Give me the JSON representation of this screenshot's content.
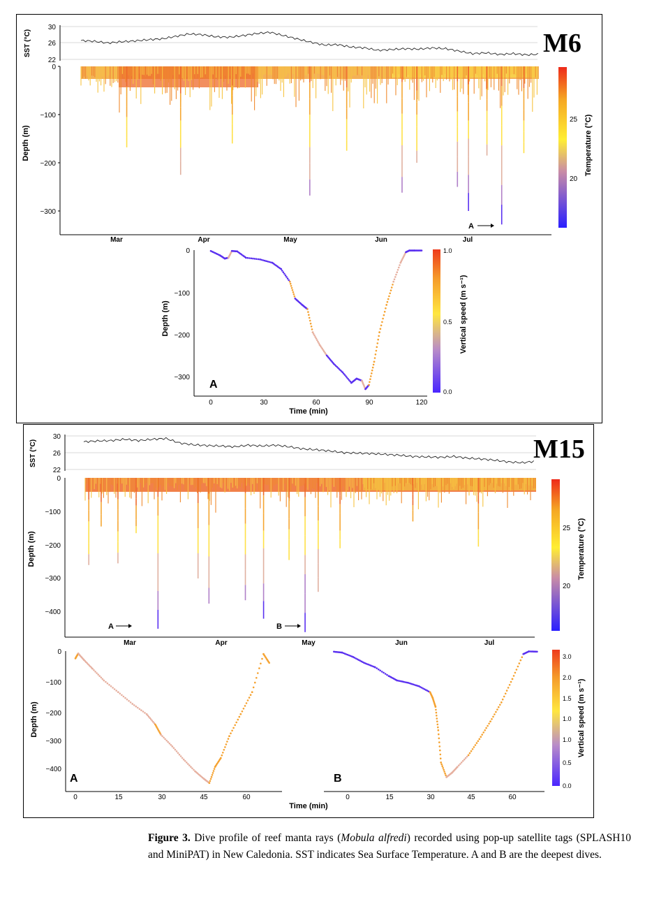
{
  "m6": {
    "tag": "M6",
    "sst": {
      "axis_label": "SST (°C)",
      "ticks": [
        "30",
        "26",
        "22"
      ]
    },
    "depth_panel": {
      "ylabel": "Depth (m)",
      "yticks": [
        "0",
        "−100",
        "−200",
        "−300"
      ],
      "months": [
        "Mar",
        "Apr",
        "May",
        "Jun",
        "Jul"
      ],
      "colorbar_label": "Temperature (°C)",
      "colorbar_ticks": [
        "25",
        "20"
      ],
      "marker": "A"
    },
    "dive_A": {
      "panel_letter": "A",
      "ylabel": "Depth (m)",
      "xlabel": "Time (min)",
      "yticks": [
        "0",
        "−100",
        "−200",
        "−300"
      ],
      "xticks": [
        "0",
        "30",
        "60",
        "90",
        "120"
      ],
      "colorbar_label": "Vertical speed (m s⁻¹)",
      "colorbar_ticks": [
        "1.0",
        "0.5",
        "0.0"
      ]
    }
  },
  "m15": {
    "tag": "M15",
    "sst": {
      "axis_label": "SST (°C)",
      "ticks": [
        "30",
        "26",
        "22"
      ]
    },
    "depth_panel": {
      "ylabel": "Depth (m)",
      "yticks": [
        "0",
        "−100",
        "−200",
        "−300",
        "−400"
      ],
      "months": [
        "Mar",
        "Apr",
        "May",
        "Jun",
        "Jul"
      ],
      "colorbar_label": "Temperature (°C)",
      "colorbar_ticks": [
        "25",
        "20"
      ],
      "marker_a": "A",
      "marker_b": "B"
    },
    "dive_A": {
      "panel_letter": "A",
      "ylabel": "Depth (m)",
      "yticks": [
        "0",
        "−100",
        "−200",
        "−300",
        "−400"
      ],
      "xticks": [
        "0",
        "15",
        "30",
        "45",
        "60"
      ]
    },
    "dive_B": {
      "panel_letter": "B",
      "xticks": [
        "0",
        "15",
        "30",
        "45",
        "60"
      ],
      "colorbar_label": "Vertical speed (m s⁻¹)",
      "colorbar_ticks": [
        "3.0",
        "2.0",
        "1.5",
        "1.0",
        "1.0",
        "0.5",
        "0.0"
      ]
    },
    "xlabel": "Time (min)"
  },
  "caption": {
    "label": "Figure 3.",
    "text_1": " Dive profile of reef manta rays (",
    "species": "Mobula alfredi",
    "text_2": ") recorded using pop-up satellite tags (SPLASH10 and MiniPAT) in New Caledonia. SST indicates Sea Surface Temperature. A and B are the deepest dives."
  },
  "chart_data": [
    {
      "type": "line",
      "title": "",
      "ylabel": "SST (°C)",
      "ylim": [
        22,
        30
      ],
      "x_axis": "Mar–Jul (M6)",
      "series": [
        {
          "values": [
            26.6,
            26.4,
            26.0,
            26.3,
            26.5,
            26.8,
            27.0,
            27.6,
            28.2,
            28.0,
            27.5,
            27.4,
            27.8,
            28.3,
            28.6,
            27.8,
            27.0,
            26.2,
            25.5,
            25.6,
            25.0,
            24.8,
            24.2,
            24.4,
            24.6,
            24.5,
            24.8,
            24.6,
            24.0,
            23.4,
            23.6,
            23.2,
            23.4,
            23.1,
            23.3
          ]
        }
      ]
    },
    {
      "type": "scatter",
      "title": "",
      "ylabel": "Depth (m)",
      "ylim": [
        -330,
        0
      ],
      "x_axis": "Mar–Jul (M6)",
      "color_scale": {
        "label": "Temperature (°C)",
        "range": [
          17,
          29
        ],
        "colors": [
          "#2a1fff",
          "#ffe640",
          "#ef3b1c"
        ]
      },
      "deep_dives": [
        {
          "month_pos": 0.62,
          "depth": -168
        },
        {
          "month_pos": 1.35,
          "depth": -225
        },
        {
          "month_pos": 2.05,
          "depth": -160
        },
        {
          "month_pos": 3.1,
          "depth": -268
        },
        {
          "month_pos": 3.6,
          "depth": -175
        },
        {
          "month_pos": 4.35,
          "depth": -262
        },
        {
          "month_pos": 4.55,
          "depth": -200
        },
        {
          "month_pos": 5.1,
          "depth": -250
        },
        {
          "month_pos": 5.25,
          "depth": -300
        },
        {
          "month_pos": 5.5,
          "depth": -185
        },
        {
          "month_pos": 5.7,
          "depth": -328
        },
        {
          "month_pos": 6.0,
          "depth": -180
        }
      ],
      "annotation": "A"
    },
    {
      "type": "scatter",
      "title": "",
      "xlabel": "Time (min)",
      "ylabel": "Depth (m)",
      "xlim": [
        0,
        120
      ],
      "ylim": [
        -330,
        0
      ],
      "color_scale": {
        "label": "Vertical speed (m s⁻¹)",
        "range": [
          0,
          1
        ]
      },
      "x": [
        0,
        5,
        8,
        10,
        12,
        15,
        20,
        28,
        35,
        40,
        45,
        48,
        52,
        55,
        58,
        62,
        66,
        70,
        75,
        80,
        83,
        86,
        88,
        90,
        93,
        96,
        100,
        104,
        108,
        111,
        113,
        116,
        120
      ],
      "y": [
        -2,
        -12,
        -20,
        -18,
        -2,
        -3,
        -18,
        -22,
        -30,
        -45,
        -75,
        -115,
        -130,
        -140,
        -195,
        -225,
        -250,
        -270,
        -290,
        -315,
        -305,
        -310,
        -330,
        -320,
        -265,
        -195,
        -130,
        -75,
        -30,
        -5,
        -1,
        -1,
        -1
      ]
    },
    {
      "type": "line",
      "title": "",
      "ylabel": "SST (°C)",
      "ylim": [
        22,
        30
      ],
      "x_axis": "Mar–Jul (M15)",
      "series": [
        {
          "values": [
            28.6,
            28.8,
            28.9,
            29.2,
            28.9,
            29.2,
            29.4,
            28.3,
            27.9,
            27.7,
            27.6,
            27.4,
            27.8,
            27.6,
            27.8,
            27.4,
            26.9,
            26.7,
            26.4,
            26.0,
            25.9,
            25.8,
            25.6,
            25.4,
            25.1,
            25.0,
            24.9,
            25.1,
            24.7,
            24.5,
            24.2,
            23.8,
            23.6,
            24.0
          ]
        }
      ]
    },
    {
      "type": "scatter",
      "title": "",
      "ylabel": "Depth (m)",
      "ylim": [
        -460,
        0
      ],
      "x_axis": "Mar–Jul (M15)",
      "color_scale": {
        "label": "Temperature (°C)",
        "range": [
          15,
          30
        ]
      },
      "deep_dives": [
        {
          "month_pos": 0.05,
          "depth": -260
        },
        {
          "month_pos": 0.22,
          "depth": -145
        },
        {
          "month_pos": 0.45,
          "depth": -255
        },
        {
          "month_pos": 0.7,
          "depth": -165
        },
        {
          "month_pos": 1.0,
          "depth": -450
        },
        {
          "month_pos": 1.55,
          "depth": -300
        },
        {
          "month_pos": 1.7,
          "depth": -375
        },
        {
          "month_pos": 2.2,
          "depth": -365
        },
        {
          "month_pos": 2.45,
          "depth": -420
        },
        {
          "month_pos": 2.8,
          "depth": -245
        },
        {
          "month_pos": 3.02,
          "depth": -460
        },
        {
          "month_pos": 3.2,
          "depth": -340
        },
        {
          "month_pos": 3.5,
          "depth": -210
        },
        {
          "month_pos": 4.5,
          "depth": -130
        },
        {
          "month_pos": 5.4,
          "depth": -205
        }
      ],
      "annotations": [
        "A",
        "B"
      ]
    },
    {
      "type": "scatter",
      "title": "",
      "xlabel": "Time (min)",
      "ylabel": "Depth (m)",
      "xlim": [
        -1,
        69
      ],
      "ylim": [
        -460,
        0
      ],
      "x": [
        0,
        1,
        3,
        6,
        10,
        15,
        20,
        25,
        28,
        30,
        34,
        38,
        42,
        45,
        47,
        49,
        51,
        54,
        58,
        62,
        66,
        68
      ],
      "y": [
        -25,
        -8,
        -30,
        -60,
        -100,
        -140,
        -180,
        -215,
        -250,
        -285,
        -325,
        -370,
        -410,
        -435,
        -450,
        -395,
        -365,
        -290,
        -215,
        -140,
        -10,
        -40
      ]
    },
    {
      "type": "scatter",
      "title": "",
      "xlabel": "Time (min)",
      "xlim": [
        -5,
        69
      ],
      "ylim": [
        -460,
        0
      ],
      "color_scale": {
        "label": "Vertical speed (m s⁻¹)",
        "range": [
          0,
          3
        ]
      },
      "x": [
        -5,
        -2,
        2,
        6,
        10,
        15,
        18,
        22,
        26,
        30,
        31,
        32,
        33,
        34,
        36,
        38,
        40,
        44,
        48,
        52,
        56,
        60,
        64,
        66,
        69
      ],
      "y": [
        -2,
        -5,
        -20,
        -40,
        -55,
        -85,
        -100,
        -108,
        -120,
        -140,
        -160,
        -190,
        -270,
        -380,
        -430,
        -415,
        -395,
        -355,
        -300,
        -240,
        -175,
        -95,
        -10,
        -1,
        -2
      ]
    }
  ]
}
